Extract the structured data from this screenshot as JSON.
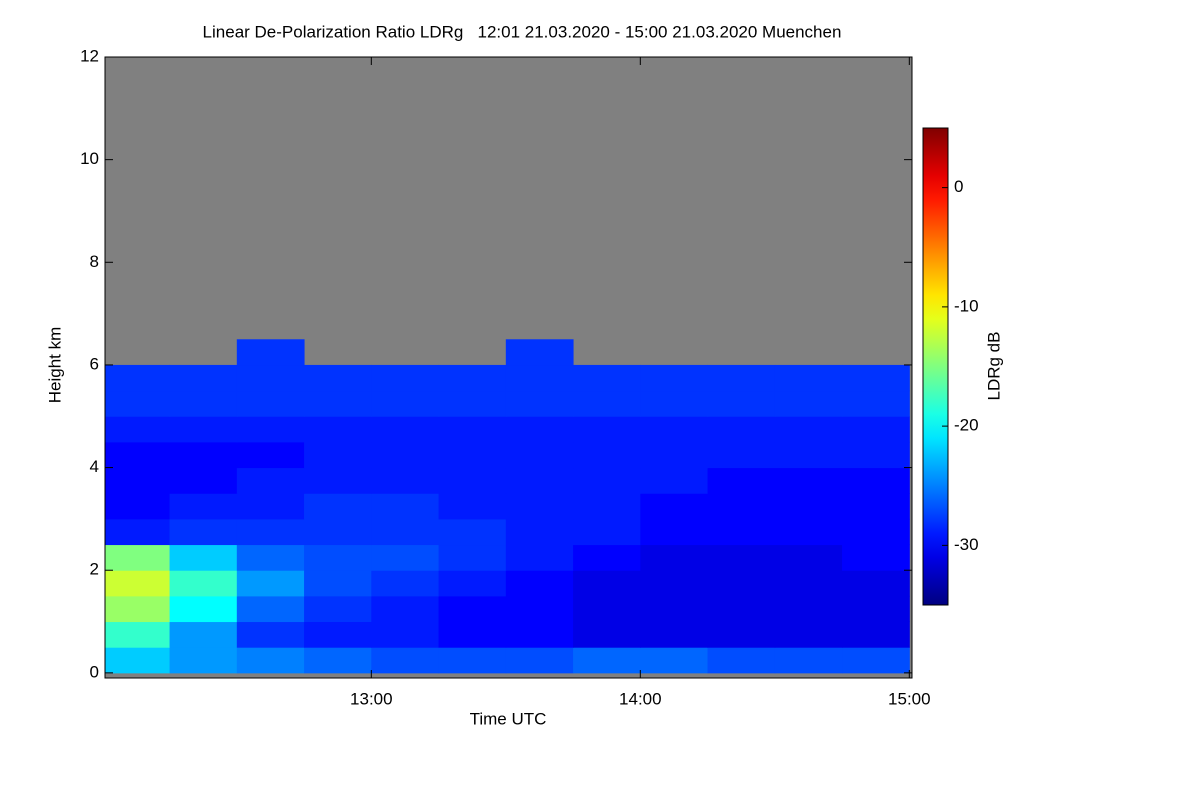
{
  "chart_data": {
    "type": "heatmap",
    "title": "Linear De-Polarization Ratio LDRg   12:01 21.03.2020 - 15:00 21.03.2020 Muenchen",
    "x_label": "Time UTC",
    "y_label": "Height km",
    "colorbar_label": "LDRg dB",
    "colormap": "jet",
    "missing_color": "#808080",
    "xlim": [
      12.01,
      15.01
    ],
    "xticks": [
      {
        "value": 13,
        "label": "13:00"
      },
      {
        "value": 14,
        "label": "14:00"
      },
      {
        "value": 15,
        "label": "15:00"
      }
    ],
    "ylim": [
      -0.1,
      12
    ],
    "yticks": [
      0,
      2,
      4,
      6,
      8,
      10,
      12
    ],
    "clim": [
      -35,
      5
    ],
    "cticks": [
      0,
      -10,
      -20,
      -30
    ],
    "x": [
      12.125,
      12.375,
      12.625,
      12.875,
      13.125,
      13.375,
      13.625,
      13.875,
      14.125,
      14.375,
      14.625,
      14.875
    ],
    "y": [
      0.25,
      0.75,
      1.25,
      1.75,
      2.25,
      2.75,
      3.25,
      3.75,
      4.25,
      4.75,
      5.25,
      5.75,
      6.25
    ],
    "z": [
      [
        -22,
        -24,
        -25,
        -26,
        -27,
        -27,
        -27,
        -26,
        -26,
        -27,
        -27,
        -27
      ],
      [
        -18,
        -24,
        -28,
        -29,
        -29,
        -30,
        -30,
        -31,
        -31,
        -31,
        -31,
        -31
      ],
      [
        -14,
        -20,
        -26,
        -28,
        -29,
        -30,
        -30,
        -31,
        -31,
        -31,
        -31,
        -31
      ],
      [
        -12,
        -18,
        -24,
        -27,
        -28,
        -29,
        -30,
        -31,
        -31,
        -31,
        -31,
        -31
      ],
      [
        -15,
        -22,
        -26,
        -27,
        -27,
        -28,
        -29,
        -30,
        -31,
        -31,
        -31,
        -30
      ],
      [
        -29,
        -28,
        -28,
        -28,
        -28,
        -28,
        -29,
        -29,
        -30,
        -30,
        -30,
        -30
      ],
      [
        -30,
        -29,
        -29,
        -28,
        -28,
        -29,
        -29,
        -29,
        -30,
        -30,
        -30,
        -30
      ],
      [
        -30,
        -30,
        -29,
        -29,
        -29,
        -29,
        -29,
        -29,
        -29,
        -30,
        -30,
        -30
      ],
      [
        -30,
        -30,
        -30,
        -29,
        -29,
        -29,
        -29,
        -29,
        -29,
        -29,
        -29,
        -29
      ],
      [
        -29,
        -29,
        -29,
        -29,
        -29,
        -29,
        -29,
        -29,
        -29,
        -29,
        -29,
        -29
      ],
      [
        -28,
        -28,
        -28,
        -28,
        -28,
        -28,
        -28,
        -28,
        -28,
        -28,
        -28,
        -28
      ],
      [
        -28,
        -28,
        -28,
        -28,
        -28,
        -28,
        -28,
        -28,
        -28,
        -28,
        -28,
        -28
      ],
      [
        null,
        null,
        -28,
        null,
        null,
        null,
        -28,
        null,
        null,
        null,
        null,
        null
      ]
    ]
  }
}
